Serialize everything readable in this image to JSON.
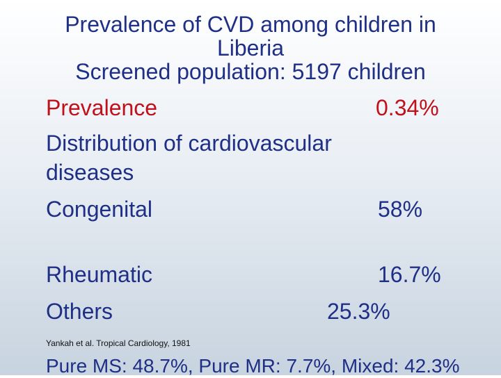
{
  "slide": {
    "title_line1": "Prevalence of CVD among children in",
    "title_line2": "Liberia",
    "title_line3": "Screened population: 5197 children",
    "prevalence_label": "Prevalence",
    "prevalence_value": "0.34%",
    "distribution_line1": "Distribution of cardiovascular",
    "distribution_line2": "diseases",
    "rows": [
      {
        "label": "Congenital",
        "value": "58%"
      },
      {
        "label": "Rheumatic",
        "value": "16.7%"
      },
      {
        "label": "Others",
        "value": "25.3%"
      }
    ],
    "citation": "Yankah et al. Tropical Cardiology, 1981",
    "footer": "Pure MS: 48.7%, Pure MR: 7.7%, Mixed: 42.3%"
  },
  "colors": {
    "title": "#1f2f86",
    "accent_red": "#c0101a"
  }
}
